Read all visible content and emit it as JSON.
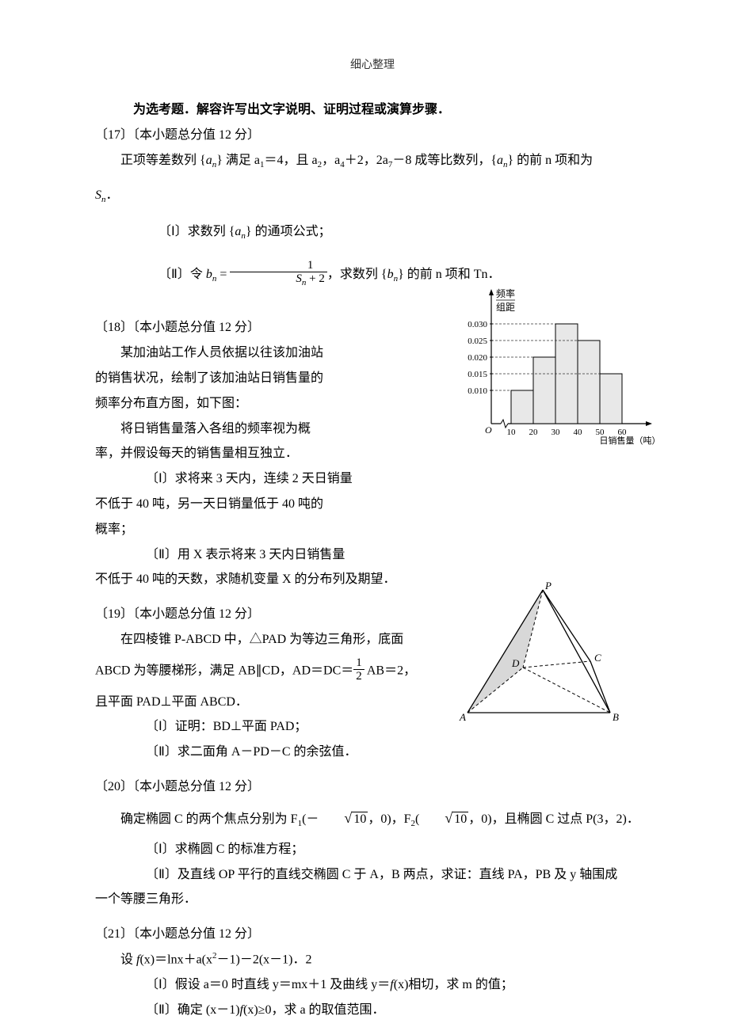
{
  "header": "细心整理",
  "intro": "为选考题．解容许写出文字说明、证明过程或演算步骤．",
  "q17": {
    "number": "〔17〕〔本小题总分值 12 分〕",
    "body": "正项等差数列 {aₙ} 满足 a₁＝4，且 a₂，a₄＋2，2a₇－8 成等比数列，{aₙ} 的前 n 项和为",
    "sn": "Sₙ．",
    "part1": "〔Ⅰ〕求数列 {aₙ} 的通项公式；",
    "part2_prefix": "〔Ⅱ〕令 ",
    "part2_bn": "bₙ =",
    "part2_frac_num": "1",
    "part2_frac_den": "Sₙ + 2",
    "part2_suffix": "，求数列 {bₙ} 的前 n 项和 Tn．"
  },
  "q18": {
    "number": "〔18〕〔本小题总分值 12 分〕",
    "line1": "某加油站工作人员依据以往该加油站",
    "line2": "的销售状况，绘制了该加油站日销售量的",
    "line3": "频率分布直方图，如下图：",
    "line4": "将日销售量落入各组的频率视为概",
    "line5": "率，并假设每天的销售量相互独立．",
    "part1a": "〔Ⅰ〕求将来 3 天内，连续 2 天日销量",
    "part1b": "不低于 40 吨，另一天日销量低于 40 吨的",
    "part1c": "概率；",
    "part2a": "〔Ⅱ〕用 X 表示将来 3 天内日销售量",
    "part2b": "不低于 40 吨的天数，求随机变量 X 的分布列及期望．"
  },
  "chart": {
    "y_label_top": "频率",
    "y_label_bottom": "组距",
    "y_ticks": [
      "0.010",
      "0.015",
      "0.020",
      "0.025",
      "0.030"
    ],
    "y_values": [
      0.01,
      0.015,
      0.02,
      0.025,
      0.03
    ],
    "x_ticks": [
      "10",
      "20",
      "30",
      "40",
      "50",
      "60"
    ],
    "x_label": "日销售量（吨）",
    "origin_label": "O",
    "bars": [
      {
        "x": 10,
        "height": 0.01,
        "color": "#e8e8e8"
      },
      {
        "x": 20,
        "height": 0.02,
        "color": "#e8e8e8"
      },
      {
        "x": 30,
        "height": 0.03,
        "color": "#e8e8e8"
      },
      {
        "x": 40,
        "height": 0.025,
        "color": "#e8e8e8"
      },
      {
        "x": 50,
        "height": 0.015,
        "color": "#e8e8e8"
      }
    ],
    "axis_color": "#000000",
    "dash_color": "#333333",
    "background_color": "#ffffff"
  },
  "q19": {
    "number": "〔19〕〔本小题总分值 12 分〕",
    "line1": "在四棱锥 P-ABCD 中，△PAD 为等边三角形，底面",
    "line2a": "ABCD 为等腰梯形，满足 AB∥CD，AD＝DC＝",
    "line2_frac_num": "1",
    "line2_frac_den": "2",
    "line2b": " AB＝2，",
    "line3": "且平面 PAD⊥平面 ABCD．",
    "part1": "〔Ⅰ〕证明：BD⊥平面 PAD；",
    "part2": "〔Ⅱ〕求二面角 A－PD－C 的余弦值．"
  },
  "pyramid": {
    "labels": {
      "P": "P",
      "A": "A",
      "B": "B",
      "C": "C",
      "D": "D"
    },
    "stroke_color": "#000000",
    "fill_color": "#d0d0d0"
  },
  "q20": {
    "number": "〔20〕〔本小题总分值 12 分〕",
    "line1a": "确定椭圆 C 的两个焦点分别为 F₁(－",
    "sqrt1": "10",
    "line1b": "，0)，F₂(",
    "sqrt2": "10",
    "line1c": "，0)，且椭圆 C 过点 P(3，2)．",
    "part1": "〔Ⅰ〕求椭圆 C 的标准方程；",
    "part2a": "〔Ⅱ〕及直线 OP 平行的直线交椭圆 C 于 A，B 两点，求证：直线 PA，PB 及 y 轴围成",
    "part2b": "一个等腰三角形．"
  },
  "q21": {
    "number": "〔21〕〔本小题总分值 12 分〕",
    "line1": "设 f(x)＝lnx＋a(x²－1)－2(x－1)．2",
    "part1": "〔Ⅰ〕假设 a＝0 时直线 y＝mx＋1 及曲线 y＝f(x)相切，求 m 的值；",
    "part2": "〔Ⅱ〕确定 (x－1)f(x)≥0，求 a 的取值范围．"
  }
}
